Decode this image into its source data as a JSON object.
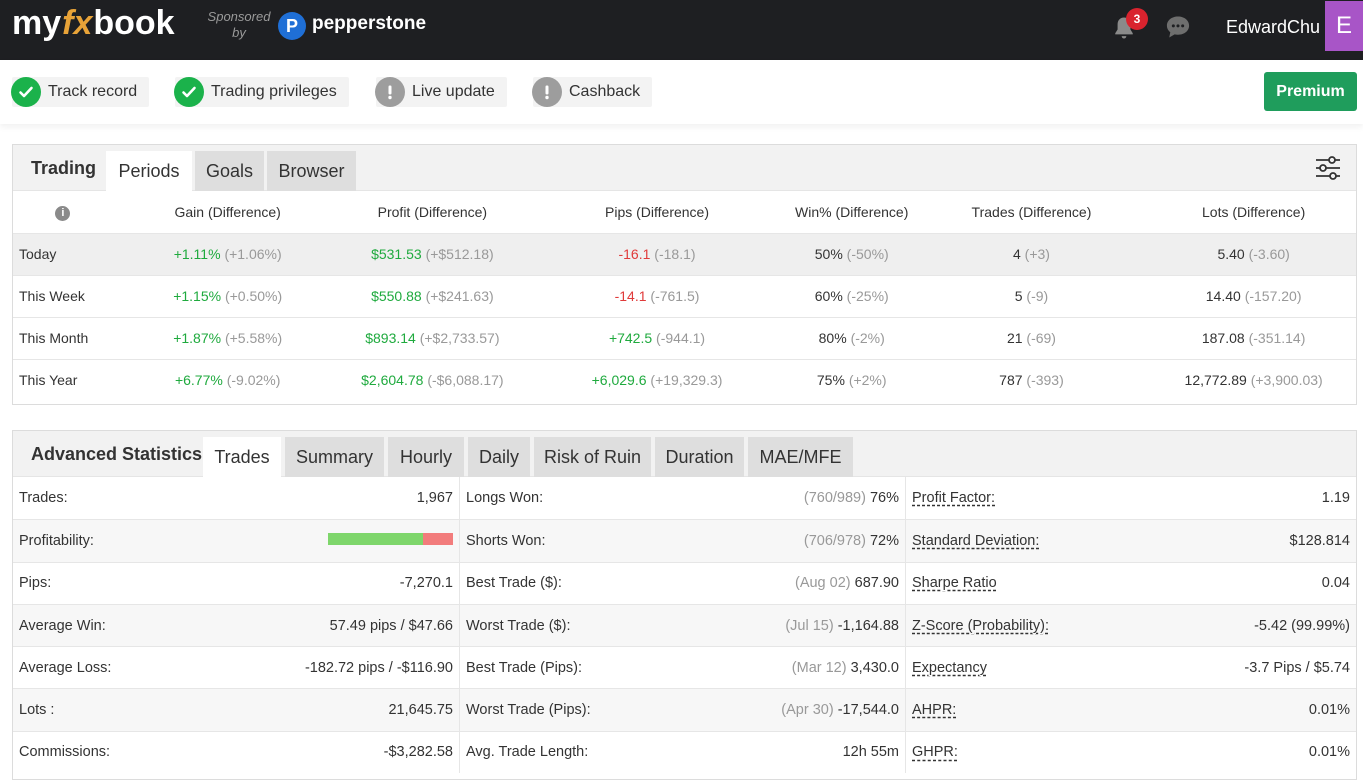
{
  "header": {
    "logo": {
      "my": "my",
      "fx": "fx",
      "book": "book"
    },
    "sponsored": "Sponsored",
    "sponsored_by": "by",
    "sponsor_name": "pepperstone",
    "notification_count": "3",
    "username": "EdwardChu",
    "avatar_letter": "E"
  },
  "status": {
    "chips": [
      {
        "label": "Track record",
        "state": "ok"
      },
      {
        "label": "Trading privileges",
        "state": "ok"
      },
      {
        "label": "Live update",
        "state": "warn"
      },
      {
        "label": "Cashback",
        "state": "warn"
      }
    ],
    "premium_label": "Premium"
  },
  "trading": {
    "title": "Trading",
    "tabs": [
      "Periods",
      "Goals",
      "Browser"
    ],
    "active_tab": "Periods",
    "columns": [
      "Gain (Difference)",
      "Profit (Difference)",
      "Pips (Difference)",
      "Win% (Difference)",
      "Trades (Difference)",
      "Lots (Difference)"
    ],
    "rows": [
      {
        "label": "Today",
        "gain": "+1.11%",
        "gain_diff": "(+1.06%)",
        "profit": "$531.53",
        "profit_diff": "(+$512.18)",
        "pips": "-16.1",
        "pips_diff": "(-18.1)",
        "win": "50%",
        "win_diff": "(-50%)",
        "trades": "4",
        "trades_diff": "(+3)",
        "lots": "5.40",
        "lots_diff": "(-3.60)"
      },
      {
        "label": "This Week",
        "gain": "+1.15%",
        "gain_diff": "(+0.50%)",
        "profit": "$550.88",
        "profit_diff": "(+$241.63)",
        "pips": "-14.1",
        "pips_diff": "(-761.5)",
        "win": "60%",
        "win_diff": "(-25%)",
        "trades": "5",
        "trades_diff": "(-9)",
        "lots": "14.40",
        "lots_diff": "(-157.20)"
      },
      {
        "label": "This Month",
        "gain": "+1.87%",
        "gain_diff": "(+5.58%)",
        "profit": "$893.14",
        "profit_diff": "(+$2,733.57)",
        "pips": "+742.5",
        "pips_diff": "(-944.1)",
        "win": "80%",
        "win_diff": "(-2%)",
        "trades": "21",
        "trades_diff": "(-69)",
        "lots": "187.08",
        "lots_diff": "(-351.14)"
      },
      {
        "label": "This Year",
        "gain": "+6.77%",
        "gain_diff": "(-9.02%)",
        "profit": "$2,604.78",
        "profit_diff": "(-$6,088.17)",
        "pips": "+6,029.6",
        "pips_diff": "(+19,329.3)",
        "win": "75%",
        "win_diff": "(+2%)",
        "trades": "787",
        "trades_diff": "(-393)",
        "lots": "12,772.89",
        "lots_diff": "(+3,900.03)"
      }
    ],
    "colors": {
      "positive": "#1faa3e",
      "negative": "#e03a3a"
    }
  },
  "advanced": {
    "title": "Advanced Statistics",
    "tabs": [
      "Trades",
      "Summary",
      "Hourly",
      "Daily",
      "Risk of Ruin",
      "Duration",
      "MAE/MFE"
    ],
    "active_tab": "Trades",
    "col1": [
      {
        "label": "Trades:",
        "value": "1,967"
      },
      {
        "label": "Profitability:",
        "bar_fraction_positive": 0.76
      },
      {
        "label": "Pips:",
        "value": "-7,270.1"
      },
      {
        "label": "Average Win:",
        "value": "57.49 pips / $47.66"
      },
      {
        "label": "Average Loss:",
        "value": "-182.72 pips / -$116.90"
      },
      {
        "label": "Lots :",
        "value": "21,645.75"
      },
      {
        "label": "Commissions:",
        "value": "-$3,282.58"
      }
    ],
    "col2": [
      {
        "label": "Longs Won:",
        "note": "(760/989)",
        "value": "76%"
      },
      {
        "label": "Shorts Won:",
        "note": "(706/978)",
        "value": "72%"
      },
      {
        "label": "Best Trade ($):",
        "note": "(Aug 02)",
        "value": "687.90"
      },
      {
        "label": "Worst Trade ($):",
        "note": "(Jul 15)",
        "value": "-1,164.88"
      },
      {
        "label": "Best Trade (Pips):",
        "note": "(Mar 12)",
        "value": "3,430.0"
      },
      {
        "label": "Worst Trade (Pips):",
        "note": "(Apr 30)",
        "value": "-17,544.0"
      },
      {
        "label": "Avg. Trade Length:",
        "note": "",
        "value": "12h 55m"
      }
    ],
    "col3": [
      {
        "label": "Profit Factor:",
        "value": "1.19"
      },
      {
        "label": "Standard Deviation:",
        "value": "$128.814"
      },
      {
        "label": "Sharpe Ratio",
        "value": "0.04"
      },
      {
        "label": "Z-Score (Probability):",
        "value": "-5.42 (99.99%)"
      },
      {
        "label": "Expectancy",
        "value": "-3.7 Pips / $5.74"
      },
      {
        "label": "AHPR:",
        "value": "0.01%"
      },
      {
        "label": "GHPR:",
        "value": "0.01%"
      }
    ]
  }
}
